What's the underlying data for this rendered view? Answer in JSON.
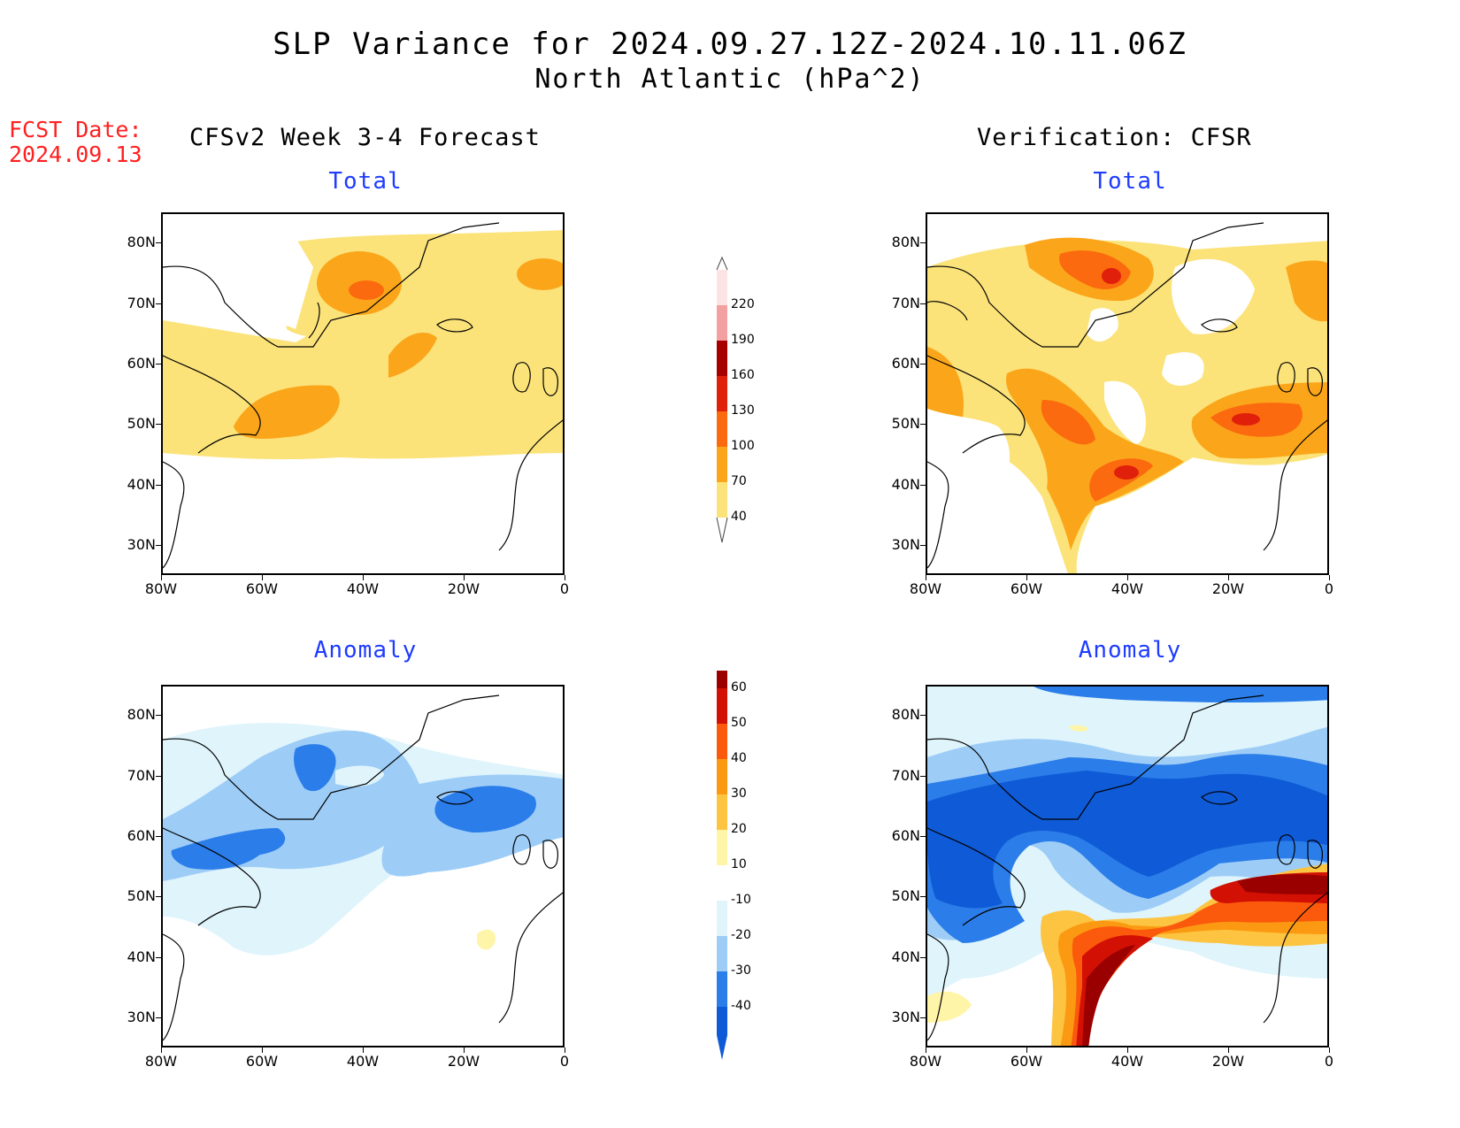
{
  "header": {
    "title_line1": "SLP Variance for 2024.09.27.12Z-2024.10.11.06Z",
    "title_line2": "North Atlantic (hPa^2)",
    "fcst_label": "FCST Date:",
    "fcst_date": "2024.09.13",
    "left_column": "CFSv2 Week 3-4 Forecast",
    "right_column": "Verification: CFSR"
  },
  "panels": {
    "forecast_total": "Total",
    "forecast_anomaly": "Anomaly",
    "verif_total": "Total",
    "verif_anomaly": "Anomaly"
  },
  "axes": {
    "lat_labels": [
      "80N",
      "70N",
      "60N",
      "50N",
      "40N",
      "30N"
    ],
    "lon_labels": [
      "80W",
      "60W",
      "40W",
      "20W",
      "0"
    ],
    "lat_range": [
      25,
      85
    ],
    "lon_range": [
      -80,
      0
    ]
  },
  "colorbars": {
    "total": {
      "levels": [
        "40",
        "70",
        "100",
        "130",
        "160",
        "190",
        "220"
      ],
      "colors": [
        "#fbe37a",
        "#fba61a",
        "#fb6a0e",
        "#e0200a",
        "#a70000",
        "#f3a0a0",
        "#fde4e4"
      ]
    },
    "anomaly": {
      "levels": [
        "-40",
        "-30",
        "-20",
        "-10",
        "10",
        "20",
        "30",
        "40",
        "50",
        "60"
      ],
      "colors": [
        "#0f5ad6",
        "#2b7de9",
        "#9dcdf7",
        "#dff4fb",
        "#ffffff",
        "#fff5a8",
        "#fdc442",
        "#fb9a12",
        "#fb5a0c",
        "#d21004",
        "#9b0000"
      ]
    }
  }
}
